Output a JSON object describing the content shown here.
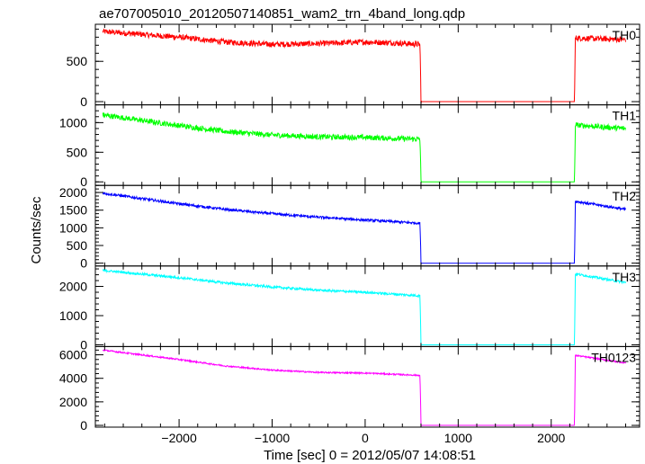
{
  "chart_data": {
    "type": "line",
    "title": "ae707005010_20120507140851_wam2_trn_4band_long.qdp",
    "xlabel": "Time [sec] 0 = 2012/05/07 14:08:51",
    "ylabel": "Counts/sec",
    "xlim": [
      -2900,
      2950
    ],
    "x_ticks": [
      -2000,
      -1000,
      0,
      1000,
      2000
    ],
    "x_tick_labels": [
      "−2000",
      "−1000",
      "0",
      "1000",
      "2000"
    ],
    "gap": [
      600,
      2250
    ],
    "panels": [
      {
        "name": "TH0",
        "color": "#ff0000",
        "ylim": [
          -40,
          960
        ],
        "y_ticks": [
          0,
          500
        ],
        "y_tick_labels": [
          "0",
          "500"
        ],
        "x": [
          -2820,
          -2000,
          -1500,
          -1000,
          -500,
          0,
          300,
          590,
          600,
          2250,
          2260,
          2800
        ],
        "y": [
          870,
          800,
          740,
          710,
          720,
          740,
          730,
          710,
          0,
          0,
          790,
          770
        ],
        "noise": 35
      },
      {
        "name": "TH1",
        "color": "#00ff00",
        "ylim": [
          -60,
          1300
        ],
        "y_ticks": [
          0,
          500,
          1000
        ],
        "y_tick_labels": [
          "0",
          "500",
          "1000"
        ],
        "x": [
          -2820,
          -2000,
          -1500,
          -1000,
          -500,
          0,
          590,
          600,
          2250,
          2260,
          2800
        ],
        "y": [
          1130,
          950,
          850,
          790,
          760,
          750,
          720,
          0,
          0,
          960,
          900
        ],
        "noise": 45
      },
      {
        "name": "TH2",
        "color": "#0000ff",
        "ylim": [
          -80,
          2200
        ],
        "y_ticks": [
          0,
          500,
          1000,
          1500,
          2000
        ],
        "y_tick_labels": [
          "0",
          "500",
          "1000",
          "1500",
          "2000"
        ],
        "x": [
          -2820,
          -2000,
          -1500,
          -1000,
          -500,
          0,
          590,
          600,
          2250,
          2260,
          2800
        ],
        "y": [
          1980,
          1680,
          1520,
          1400,
          1300,
          1220,
          1130,
          0,
          0,
          1750,
          1520
        ],
        "noise": 35
      },
      {
        "name": "TH3",
        "color": "#00ffff",
        "ylim": [
          -60,
          2700
        ],
        "y_ticks": [
          0,
          1000,
          2000
        ],
        "y_tick_labels": [
          "0",
          "1000",
          "2000"
        ],
        "x": [
          -2820,
          -2000,
          -1500,
          -1000,
          -500,
          0,
          590,
          600,
          2250,
          2260,
          2800
        ],
        "y": [
          2550,
          2300,
          2120,
          1980,
          1870,
          1800,
          1680,
          0,
          0,
          2430,
          2130
        ],
        "noise": 40
      },
      {
        "name": "TH0123",
        "color": "#ff00ff",
        "ylim": [
          -150,
          6700
        ],
        "y_ticks": [
          0,
          2000,
          4000,
          6000
        ],
        "y_tick_labels": [
          "0",
          "2000",
          "4000",
          "6000"
        ],
        "x": [
          -2820,
          -2000,
          -1500,
          -1000,
          -500,
          0,
          590,
          600,
          2250,
          2260,
          2800
        ],
        "y": [
          6400,
          5600,
          5050,
          4700,
          4500,
          4450,
          4250,
          0,
          0,
          5950,
          5300
        ],
        "noise": 60
      }
    ]
  }
}
